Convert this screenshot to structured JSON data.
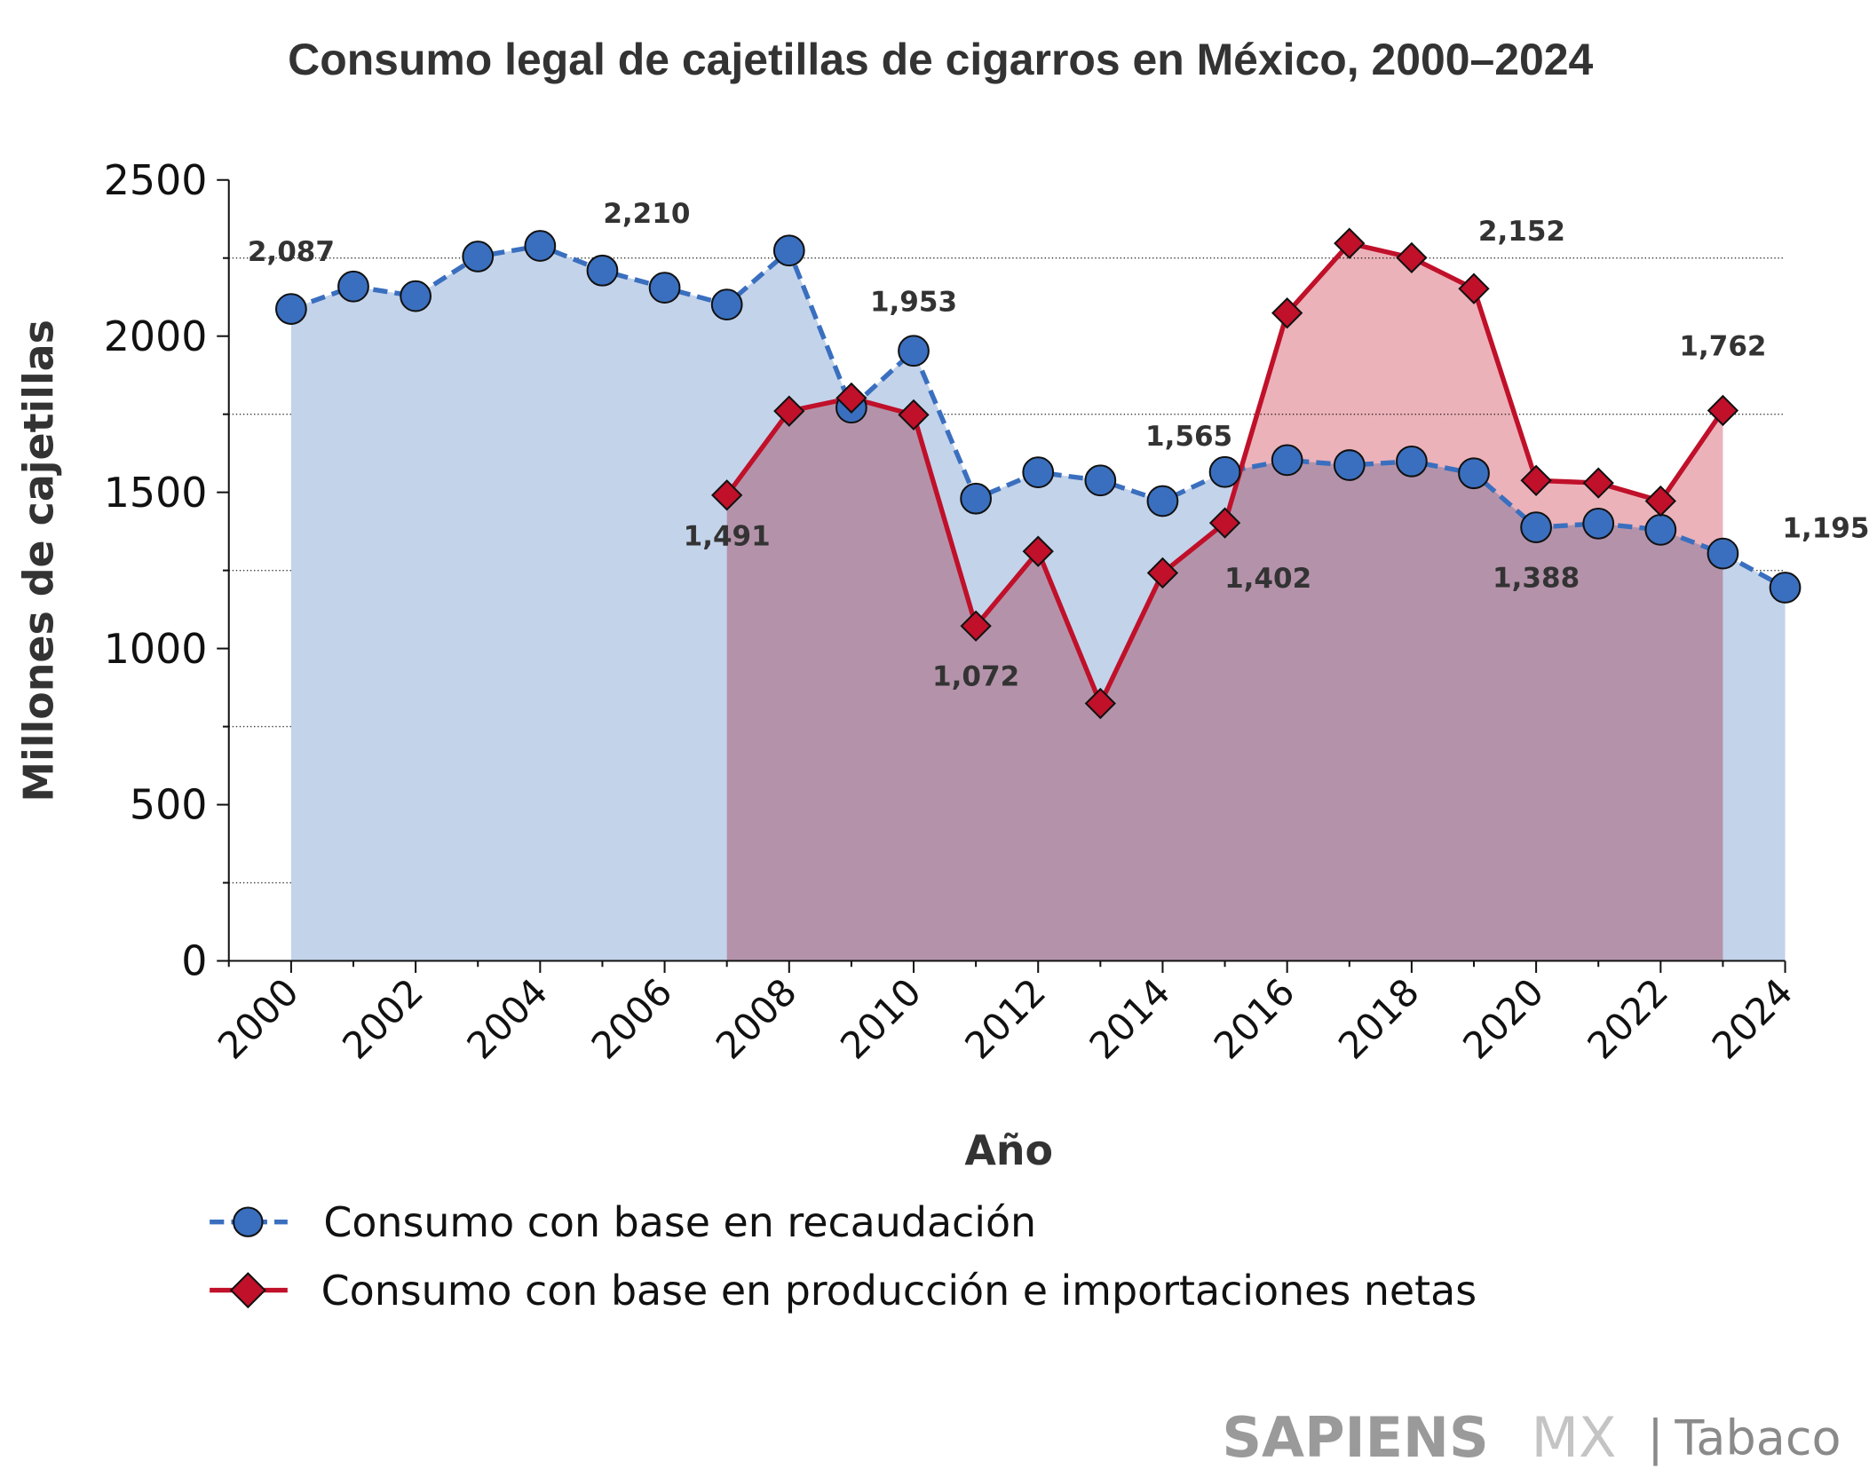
{
  "chart_data": {
    "type": "line",
    "title": "Consumo legal de cajetillas de cigarros en México, 2000–2024",
    "xlabel": "Año",
    "ylabel": "Millones de cajetillas",
    "ylim": [
      0,
      2500
    ],
    "xlim": [
      2000,
      2024
    ],
    "yticks": [
      "0",
      "500",
      "1000",
      "1500",
      "2000",
      "2500"
    ],
    "xticks": [
      "2000",
      "2002",
      "2004",
      "2006",
      "2008",
      "2010",
      "2012",
      "2014",
      "2016",
      "2018",
      "2020",
      "2022",
      "2024"
    ],
    "grid": "dotted horizontal at 250, 750, 1250, 1750, 2250",
    "legend_position": "bottom",
    "series": [
      {
        "name": "Consumo con base en recaudación",
        "color": "#3a6fbf",
        "fill": "#c3d3ea",
        "marker": "circle",
        "x": [
          2000,
          2001,
          2002,
          2003,
          2004,
          2005,
          2006,
          2007,
          2008,
          2009,
          2010,
          2011,
          2012,
          2013,
          2014,
          2015,
          2016,
          2017,
          2018,
          2019,
          2020,
          2021,
          2022,
          2023,
          2024
        ],
        "values": [
          2087,
          2159,
          2128,
          2255,
          2289,
          2210,
          2155,
          2101,
          2274,
          1771,
          1953,
          1480,
          1564,
          1538,
          1472,
          1565,
          1603,
          1587,
          1599,
          1561,
          1388,
          1400,
          1380,
          1304,
          1195
        ]
      },
      {
        "name": "Consumo con base en producción e importaciones netas",
        "color": "#c0102a",
        "fill": "#e8a4ad",
        "marker": "diamond",
        "x": [
          2007,
          2008,
          2009,
          2010,
          2011,
          2012,
          2013,
          2014,
          2015,
          2016,
          2017,
          2018,
          2019,
          2020,
          2021,
          2022,
          2023
        ],
        "values": [
          1491,
          1760,
          1802,
          1748,
          1072,
          1311,
          824,
          1242,
          1402,
          2074,
          2297,
          2251,
          2152,
          1538,
          1530,
          1472,
          1762
        ]
      }
    ],
    "annotations": [
      {
        "series": 0,
        "year": 2000,
        "text": "2,087"
      },
      {
        "series": 0,
        "year": 2005,
        "text": "2,210"
      },
      {
        "series": 0,
        "year": 2010,
        "text": "1,953"
      },
      {
        "series": 1,
        "year": 2007,
        "text": "1,491"
      },
      {
        "series": 1,
        "year": 2011,
        "text": "1,072"
      },
      {
        "series": 0,
        "year": 2015,
        "text": "1,565"
      },
      {
        "series": 1,
        "year": 2015,
        "text": "1,402"
      },
      {
        "series": 1,
        "year": 2019,
        "text": "2,152"
      },
      {
        "series": 1,
        "year": 2023,
        "text": "1,762"
      },
      {
        "series": 0,
        "year": 2020,
        "text": "1,388"
      },
      {
        "series": 0,
        "year": 2024,
        "text": "1,195"
      }
    ]
  },
  "branding": {
    "brand": "SAPIENS",
    "brand2": "MX",
    "separator": "|",
    "section": "Tabaco"
  }
}
